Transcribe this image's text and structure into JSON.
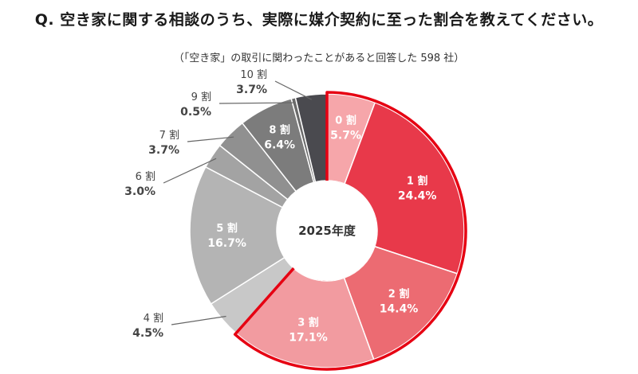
{
  "question": "Q.  空き家に関する相談のうち、実際に媒介契約に至った割合を教えてください。",
  "subtitle": "（「空き家」の取引に関わったことがあると回答した 598 社）",
  "chart_data": {
    "type": "pie",
    "center_label": "2025年度",
    "categories": [
      "0 割",
      "1 割",
      "2 割",
      "3 割",
      "4 割",
      "5 割",
      "6 割",
      "7 割",
      "8 割",
      "9 割",
      "10 割"
    ],
    "values": [
      5.7,
      24.4,
      14.4,
      17.1,
      4.5,
      16.7,
      3.0,
      3.7,
      6.4,
      0.5,
      3.7
    ],
    "value_labels": [
      "5.7%",
      "24.4%",
      "14.4%",
      "17.1%",
      "4.5%",
      "16.7%",
      "3.0%",
      "3.7%",
      "6.4%",
      "0.5%",
      "3.7%"
    ],
    "colors": [
      "#f6a6aa",
      "#e8394a",
      "#ec6b72",
      "#f29ba0",
      "#c8c8c8",
      "#b4b4b4",
      "#a3a3a3",
      "#909090",
      "#7c7c7c",
      "#6a6a6a",
      "#4a4a4f"
    ],
    "highlight_color": "#e60012",
    "highlighted_categories": [
      "0 割",
      "1 割",
      "2 割",
      "3 割"
    ],
    "internal_labels": [
      "0 割",
      "1 割",
      "2 割",
      "3 割",
      "5 割",
      "8 割"
    ],
    "external_labels": [
      "4 割",
      "6 割",
      "7 割",
      "9 割",
      "10 割"
    ]
  }
}
